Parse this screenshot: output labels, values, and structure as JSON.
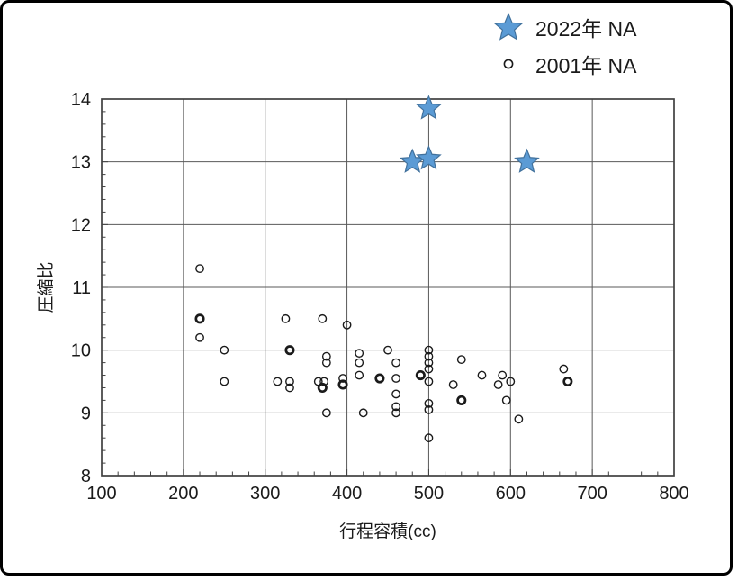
{
  "figure": {
    "background": "#ffffff",
    "frame_border_color": "#000000",
    "gridline_color": "#595959",
    "axis_color": "#404040",
    "text_color": "#1a1a1a"
  },
  "chart_data": {
    "type": "scatter",
    "title": "",
    "xlabel": "行程容積(cc)",
    "ylabel": "圧縮比",
    "xlim": [
      100,
      800
    ],
    "ylim": [
      8,
      14
    ],
    "x_major_ticks": [
      100,
      200,
      300,
      400,
      500,
      600,
      700,
      800
    ],
    "y_major_ticks": [
      8,
      9,
      10,
      11,
      12,
      13,
      14
    ],
    "x_tick_labels": [
      "100",
      "200",
      "300",
      "400",
      "500",
      "600",
      "700",
      "800"
    ],
    "y_tick_labels": [
      "8",
      "9",
      "10",
      "11",
      "12",
      "13",
      "14"
    ],
    "x_minor_step": 20,
    "y_minor_step": 0.2,
    "grid": true,
    "legend_position": "top-right",
    "series": [
      {
        "name": "2022年 NA",
        "marker": "star",
        "fill": "#5B9BD5",
        "stroke": "#41719C",
        "points": [
          [
            480,
            13.0
          ],
          [
            500,
            13.05
          ],
          [
            500,
            13.85
          ],
          [
            620,
            13.0
          ]
        ]
      },
      {
        "name": "2001年 NA",
        "marker": "circle",
        "fill": "none",
        "stroke": "#1a1a1a",
        "points": [
          [
            220,
            11.3
          ],
          [
            220,
            10.2
          ],
          [
            250,
            10.0
          ],
          [
            250,
            9.5
          ],
          [
            325,
            10.5
          ],
          [
            315,
            9.5
          ],
          [
            330,
            9.5
          ],
          [
            330,
            9.4
          ],
          [
            370,
            10.5
          ],
          [
            375,
            9.9
          ],
          [
            375,
            9.8
          ],
          [
            365,
            9.5
          ],
          [
            372,
            9.5
          ],
          [
            375,
            9.0
          ],
          [
            395,
            9.55
          ],
          [
            400,
            10.4
          ],
          [
            415,
            9.95
          ],
          [
            415,
            9.8
          ],
          [
            415,
            9.6
          ],
          [
            420,
            9.0
          ],
          [
            450,
            10.0
          ],
          [
            460,
            9.8
          ],
          [
            460,
            9.55
          ],
          [
            460,
            9.3
          ],
          [
            460,
            9.1
          ],
          [
            460,
            9.0
          ],
          [
            500,
            10.0
          ],
          [
            500,
            9.9
          ],
          [
            500,
            9.8
          ],
          [
            500,
            9.7
          ],
          [
            500,
            9.5
          ],
          [
            500,
            9.15
          ],
          [
            500,
            9.05
          ],
          [
            500,
            8.6
          ],
          [
            540,
            9.85
          ],
          [
            530,
            9.45
          ],
          [
            565,
            9.6
          ],
          [
            585,
            9.45
          ],
          [
            590,
            9.6
          ],
          [
            600,
            9.5
          ],
          [
            595,
            9.2
          ],
          [
            610,
            8.9
          ],
          [
            665,
            9.7
          ]
        ],
        "bold_points": [
          [
            220,
            10.5
          ],
          [
            330,
            10.0
          ],
          [
            370,
            9.4
          ],
          [
            395,
            9.45
          ],
          [
            440,
            9.55
          ],
          [
            490,
            9.6
          ],
          [
            540,
            9.2
          ],
          [
            670,
            9.5
          ]
        ]
      }
    ]
  },
  "legend": {
    "items": [
      {
        "label": "2022年 NA",
        "marker": "star-icon"
      },
      {
        "label": "2001年 NA",
        "marker": "circle-icon"
      }
    ]
  }
}
